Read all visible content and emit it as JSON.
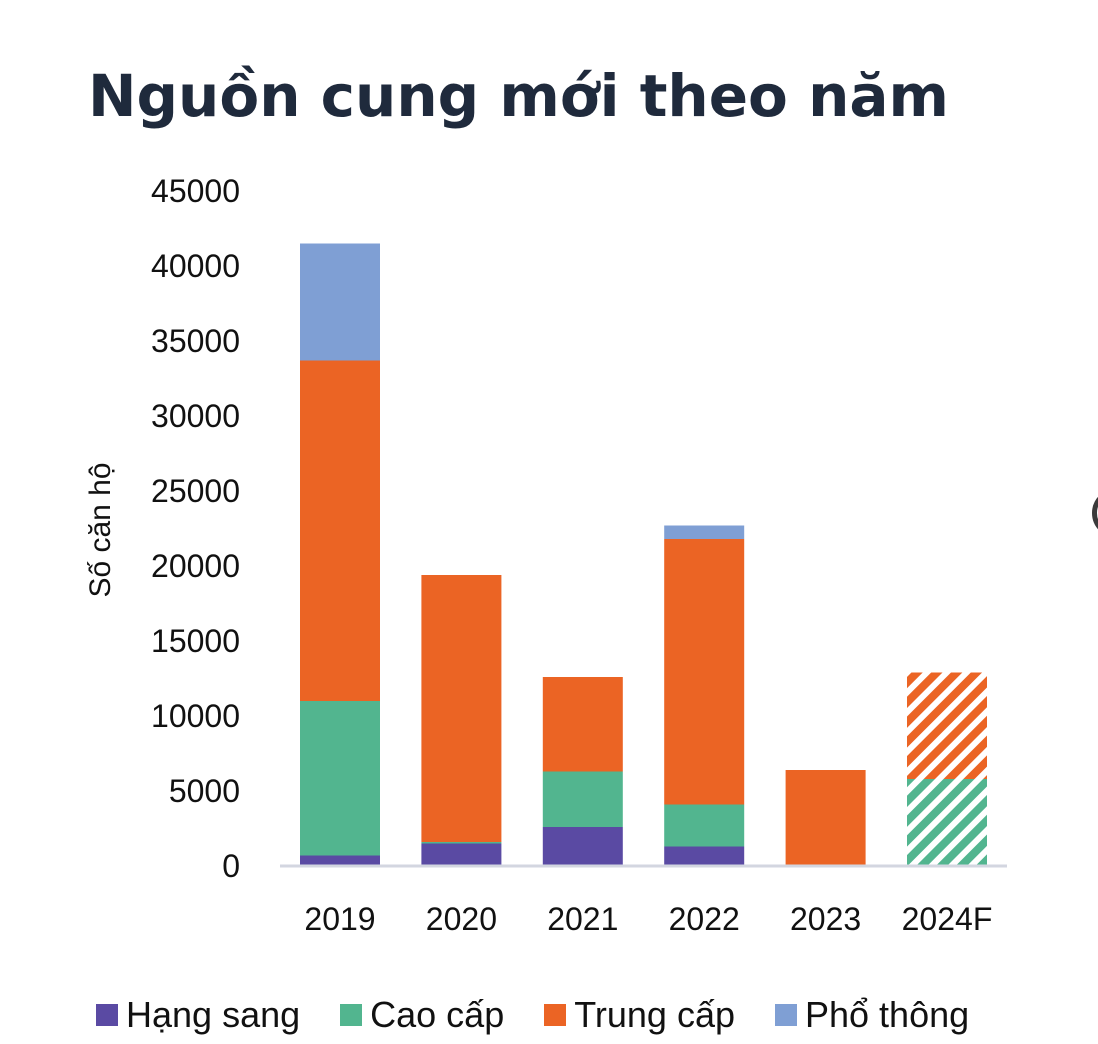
{
  "chart_data": {
    "type": "bar",
    "stacked": true,
    "title": "Nguồn cung mới theo năm",
    "xlabel": "",
    "ylabel": "Số căn hộ",
    "ylim": [
      0,
      45000
    ],
    "yticks": [
      0,
      5000,
      10000,
      15000,
      20000,
      25000,
      30000,
      35000,
      40000,
      45000
    ],
    "categories": [
      "2019",
      "2020",
      "2021",
      "2022",
      "2023",
      "2024F"
    ],
    "forecast_categories": [
      "2024F"
    ],
    "grid": false,
    "legend_position": "bottom",
    "series": [
      {
        "name": "Hạng sang",
        "color": "#5a4aa3",
        "values": [
          700,
          1500,
          2600,
          1300,
          0,
          100
        ]
      },
      {
        "name": "Cao cấp",
        "color": "#52b58f",
        "values": [
          10300,
          100,
          3700,
          2800,
          0,
          5700
        ]
      },
      {
        "name": "Trung cấp",
        "color": "#eb6424",
        "values": [
          22700,
          17800,
          6300,
          17700,
          6400,
          7100
        ]
      },
      {
        "name": "Phổ thông",
        "color": "#7f9fd4",
        "values": [
          7800,
          0,
          0,
          900,
          0,
          0
        ]
      }
    ]
  }
}
